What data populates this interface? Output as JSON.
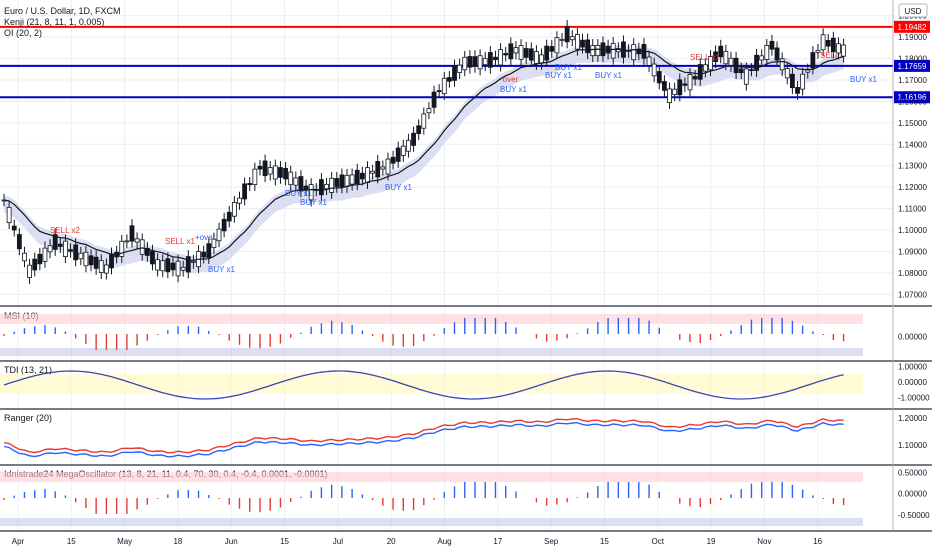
{
  "title": "Euro / U.S. Dollar, 1D, FXCM",
  "overlay_labels": [
    "Kenji (21, 8, 11, 1, 0.005)",
    "OI (20, 2)"
  ],
  "currency": "USD",
  "colors": {
    "up": "#ffffff",
    "down": "#131722",
    "hline_red": "#ff0000",
    "hline_blue": "#0000cc",
    "buy": "#2962ff",
    "sell": "#e53935",
    "band_fill": "#c5cae9",
    "grid": "#eceff1"
  },
  "horizontal_levels": [
    {
      "value": 1.19482,
      "label": "1.19482",
      "color": "#ff0000"
    },
    {
      "value": 1.17659,
      "label": "1.17659",
      "color": "#0000cc"
    },
    {
      "value": 1.16196,
      "label": "1.16196",
      "color": "#0000cc"
    }
  ],
  "signals": [
    {
      "text": "SELL x2",
      "kind": "sell"
    },
    {
      "text": "SELL x1",
      "kind": "sell"
    },
    {
      "text": "BUY x1",
      "kind": "buy"
    },
    {
      "text": "BUY x1",
      "kind": "buy"
    },
    {
      "text": "BUY x1",
      "kind": "buy"
    },
    {
      "text": "BUY x1",
      "kind": "buy"
    },
    {
      "text": "BUY x1",
      "kind": "buy"
    },
    {
      "text": "BUY x1",
      "kind": "buy"
    },
    {
      "text": "BUY x1",
      "kind": "buy"
    },
    {
      "text": "BUY x1",
      "kind": "buy"
    },
    {
      "text": "SELL x1",
      "kind": "sell"
    },
    {
      "text": "SELL",
      "kind": "sell"
    },
    {
      "text": "BUY x1",
      "kind": "buy"
    },
    {
      "text": "+over",
      "kind": "buy"
    },
    {
      "text": "-over",
      "kind": "sell"
    }
  ],
  "panes": [
    {
      "label": "MSI (10)",
      "ticks": [
        "0.00000"
      ]
    },
    {
      "label": "TDI (13, 21)",
      "ticks": [
        "1.00000",
        "0.00000",
        "-1.00000"
      ]
    },
    {
      "label": "Ranger (20)",
      "ticks": [
        "1.20000",
        "1.10000"
      ]
    },
    {
      "label": "Idnistrade24 MegaOscillator (13, 8, 21, 11, 0.4, 70, 30, 0.4, -0.4, 0.0001, -0.0001)",
      "ticks": [
        "0.50000",
        "0.00000",
        "-0.50000"
      ]
    }
  ],
  "x_axis_labels": [
    "Apr",
    "15",
    "May",
    "18",
    "Jun",
    "15",
    "Jul",
    "20",
    "Aug",
    "17",
    "Sep",
    "15",
    "Oct",
    "19",
    "Nov",
    "16"
  ],
  "chart_data": {
    "type": "candlestick",
    "y_axis_ticks": [
      1.2,
      1.19,
      1.18,
      1.17,
      1.16,
      1.15,
      1.14,
      1.13,
      1.12,
      1.11,
      1.1,
      1.09,
      1.08,
      1.07
    ],
    "ylim": [
      1.065,
      1.205
    ],
    "x_range": [
      "2020-03-27",
      "2020-11-18"
    ],
    "series": [
      {
        "name": "Close",
        "x": [
          "2020-03-27",
          "2020-04-03",
          "2020-04-10",
          "2020-04-17",
          "2020-04-24",
          "2020-05-01",
          "2020-05-08",
          "2020-05-15",
          "2020-05-22",
          "2020-05-29",
          "2020-06-05",
          "2020-06-12",
          "2020-06-19",
          "2020-06-26",
          "2020-07-03",
          "2020-07-10",
          "2020-07-17",
          "2020-07-24",
          "2020-07-31",
          "2020-08-07",
          "2020-08-14",
          "2020-08-21",
          "2020-08-28",
          "2020-09-04",
          "2020-09-11",
          "2020-09-18",
          "2020-09-25",
          "2020-10-02",
          "2020-10-09",
          "2020-10-16",
          "2020-10-23",
          "2020-10-30",
          "2020-11-06",
          "2020-11-13"
        ],
        "values": [
          1.114,
          1.081,
          1.094,
          1.088,
          1.082,
          1.098,
          1.084,
          1.082,
          1.09,
          1.11,
          1.129,
          1.126,
          1.118,
          1.122,
          1.125,
          1.13,
          1.142,
          1.165,
          1.178,
          1.179,
          1.184,
          1.18,
          1.191,
          1.184,
          1.184,
          1.183,
          1.163,
          1.171,
          1.183,
          1.172,
          1.186,
          1.165,
          1.188,
          1.183
        ]
      }
    ]
  }
}
